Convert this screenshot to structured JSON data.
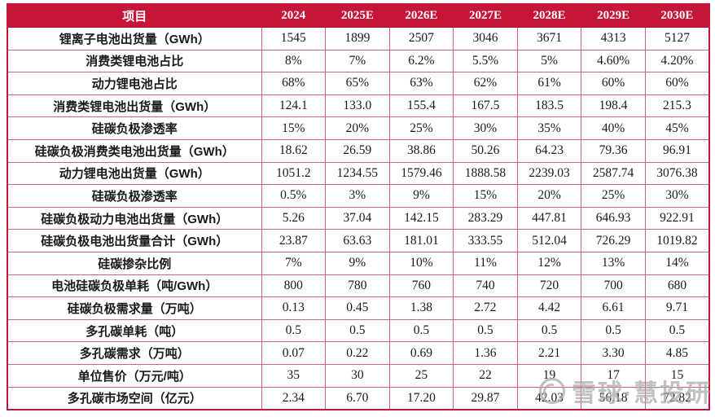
{
  "table": {
    "header": [
      "项目",
      "2024",
      "2025E",
      "2026E",
      "2027E",
      "2028E",
      "2029E",
      "2030E"
    ],
    "rows": [
      {
        "label": "锂离子电池出货量（GWh）",
        "values": [
          "1545",
          "1899",
          "2507",
          "3046",
          "3671",
          "4313",
          "5127"
        ]
      },
      {
        "label": "消费类锂电池占比",
        "values": [
          "8%",
          "7%",
          "6.2%",
          "5.5%",
          "5%",
          "4.60%",
          "4.20%"
        ]
      },
      {
        "label": "动力锂电池占比",
        "values": [
          "68%",
          "65%",
          "63%",
          "62%",
          "61%",
          "60%",
          "60%"
        ]
      },
      {
        "label": "消费类锂电池出货量（GWh）",
        "values": [
          "124.1",
          "133.0",
          "155.4",
          "167.5",
          "183.5",
          "198.4",
          "215.3"
        ]
      },
      {
        "label": "硅碳负极渗透率",
        "values": [
          "15%",
          "20%",
          "25%",
          "30%",
          "35%",
          "40%",
          "45%"
        ]
      },
      {
        "label": "硅碳负极消费类电池出货量（GWh）",
        "values": [
          "18.62",
          "26.59",
          "38.86",
          "50.26",
          "64.23",
          "79.36",
          "96.91"
        ]
      },
      {
        "label": "动力锂电池出货量（GWh）",
        "values": [
          "1051.2",
          "1234.55",
          "1579.46",
          "1888.58",
          "2239.03",
          "2587.74",
          "3076.38"
        ]
      },
      {
        "label": "硅碳负极渗透率",
        "values": [
          "0.5%",
          "3%",
          "9%",
          "15%",
          "20%",
          "25%",
          "30%"
        ]
      },
      {
        "label": "硅碳负极动力电池出货量（GWh）",
        "values": [
          "5.26",
          "37.04",
          "142.15",
          "283.29",
          "447.81",
          "646.93",
          "922.91"
        ]
      },
      {
        "label": "硅碳负极电池出货量合计（GWh）",
        "values": [
          "23.87",
          "63.63",
          "181.01",
          "333.55",
          "512.04",
          "726.29",
          "1019.82"
        ]
      },
      {
        "label": "硅碳掺杂比例",
        "values": [
          "7%",
          "9%",
          "10%",
          "11%",
          "12%",
          "13%",
          "14%"
        ]
      },
      {
        "label": "电池硅碳负极单耗（吨/GWh）",
        "values": [
          "800",
          "780",
          "760",
          "740",
          "720",
          "700",
          "680"
        ]
      },
      {
        "label": "硅碳负极需求量（万吨）",
        "values": [
          "0.13",
          "0.45",
          "1.38",
          "2.72",
          "4.42",
          "6.61",
          "9.71"
        ]
      },
      {
        "label": "多孔碳单耗（吨）",
        "values": [
          "0.5",
          "0.5",
          "0.5",
          "0.5",
          "0.5",
          "0.5",
          "0.5"
        ]
      },
      {
        "label": "多孔碳需求（万吨）",
        "values": [
          "0.07",
          "0.22",
          "0.69",
          "1.36",
          "2.21",
          "3.30",
          "4.85"
        ]
      },
      {
        "label": "单位售价（万元/吨）",
        "values": [
          "35",
          "30",
          "25",
          "22",
          "19",
          "17",
          "15"
        ]
      },
      {
        "label": "多孔碳市场空间（亿元）",
        "values": [
          "2.34",
          "6.70",
          "17.20",
          "29.87",
          "42.03",
          "56.18",
          "72.82"
        ]
      }
    ]
  },
  "watermark": {
    "text": "雪球·慧投研"
  },
  "colors": {
    "header_bg": "#c5163a",
    "grid_line": "#d4607b",
    "watermark_gray": "#a8a8a8"
  }
}
